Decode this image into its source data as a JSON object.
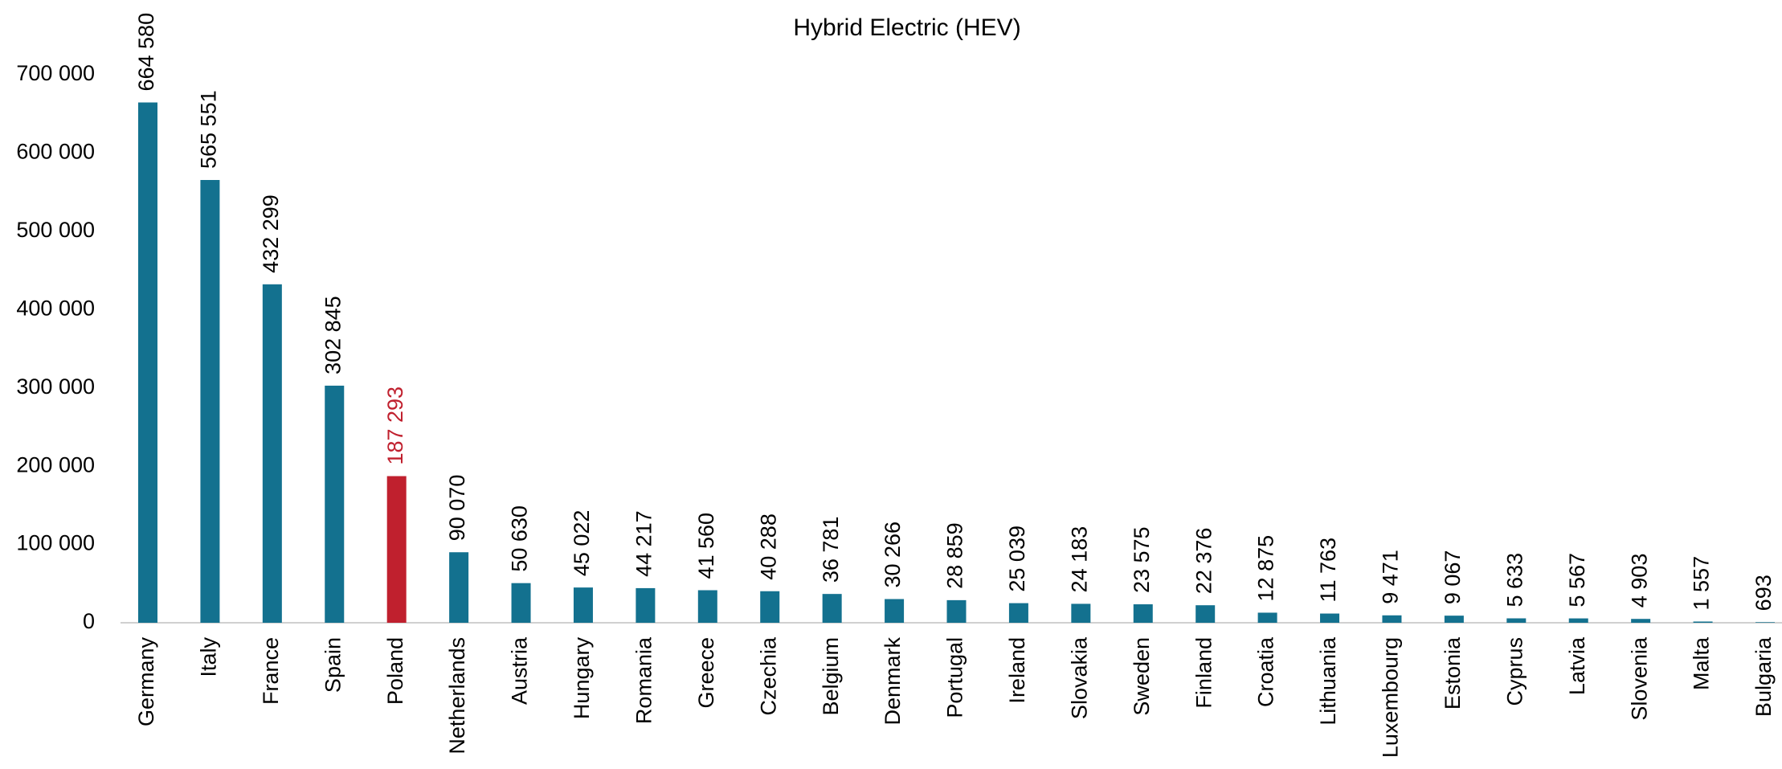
{
  "chart_data": {
    "type": "bar",
    "title": "Hybrid Electric (HEV)",
    "categories": [
      "Germany",
      "Italy",
      "France",
      "Spain",
      "Poland",
      "Netherlands",
      "Austria",
      "Hungary",
      "Romania",
      "Greece",
      "Czechia",
      "Belgium",
      "Denmark",
      "Portugal",
      "Ireland",
      "Slovakia",
      "Sweden",
      "Finland",
      "Croatia",
      "Lithuania",
      "Luxembourg",
      "Estonia",
      "Cyprus",
      "Latvia",
      "Slovenia",
      "Malta",
      "Bulgaria"
    ],
    "values": [
      664580,
      565551,
      432299,
      302845,
      187293,
      90070,
      50630,
      45022,
      44217,
      41560,
      40288,
      36781,
      30266,
      28859,
      25039,
      24183,
      23575,
      22376,
      12875,
      11763,
      9471,
      9067,
      5633,
      5567,
      4903,
      1557,
      693
    ],
    "value_labels": [
      "664 580",
      "565 551",
      "432 299",
      "302 845",
      "187 293",
      "90 070",
      "50 630",
      "45 022",
      "44 217",
      "41 560",
      "40 288",
      "36 781",
      "30 266",
      "28 859",
      "25 039",
      "24 183",
      "23 575",
      "22 376",
      "12 875",
      "11 763",
      "9 471",
      "9 067",
      "5 633",
      "5 567",
      "4 903",
      "1 557",
      "693"
    ],
    "color": "#13718f",
    "colors": [
      "#13718f",
      "#13718f",
      "#13718f",
      "#13718f",
      "#c0202e",
      "#13718f",
      "#13718f",
      "#13718f",
      "#13718f",
      "#13718f",
      "#13718f",
      "#13718f",
      "#13718f",
      "#13718f",
      "#13718f",
      "#13718f",
      "#13718f",
      "#13718f",
      "#13718f",
      "#13718f",
      "#13718f",
      "#13718f",
      "#13718f",
      "#13718f",
      "#13718f",
      "#13718f",
      "#13718f"
    ],
    "ylim": [
      0,
      700000
    ],
    "yticks": [
      0,
      {
        "value": 100000,
        "label": "100 000"
      },
      {
        "value": 200000,
        "label": "200 000"
      },
      {
        "value": 300000,
        "label": "300 000"
      },
      {
        "value": 400000,
        "label": "400 000"
      },
      {
        "value": 500000,
        "label": "500 000"
      },
      {
        "value": 600000,
        "label": "600 000"
      },
      {
        "value": 700000,
        "label": "700 000"
      }
    ],
    "grid": false
  }
}
